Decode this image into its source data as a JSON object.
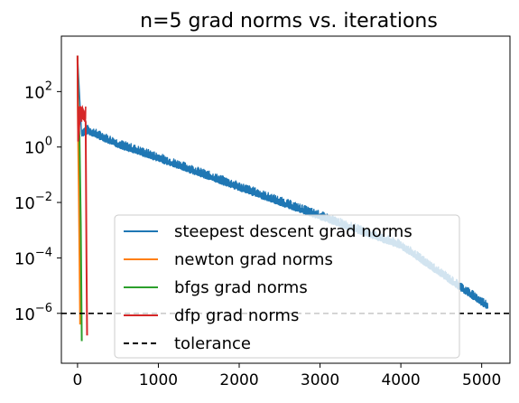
{
  "chart_data": {
    "type": "line",
    "title": "n=5 grad norms vs. iterations",
    "xlabel": "",
    "ylabel": "",
    "xlim": [
      -200,
      5350
    ],
    "ylim_log10": [
      -7.8,
      4.0
    ],
    "yscale": "log",
    "x_ticks": [
      0,
      1000,
      2000,
      3000,
      4000,
      5000
    ],
    "x_tick_labels": [
      "0",
      "1000",
      "2000",
      "3000",
      "4000",
      "5000"
    ],
    "y_ticks_log10": [
      2,
      0,
      -2,
      -4,
      -6
    ],
    "y_tick_labels": [
      {
        "base": "10",
        "exp": "2"
      },
      {
        "base": "10",
        "exp": "0"
      },
      {
        "base": "10",
        "exp": "−2"
      },
      {
        "base": "10",
        "exp": "−4"
      },
      {
        "base": "10",
        "exp": "−6"
      }
    ],
    "grid": false,
    "legend_position": "lower-center",
    "series": [
      {
        "name": "steepest descent grad norms",
        "color": "#1f77b4",
        "iterations": 5076,
        "points_log10": [
          [
            1,
            3.2
          ],
          [
            50,
            0.45
          ],
          [
            120,
            0.55
          ],
          [
            500,
            0.05
          ],
          [
            1000,
            -0.45
          ],
          [
            2000,
            -1.5
          ],
          [
            3000,
            -2.55
          ],
          [
            4000,
            -3.6
          ],
          [
            5076,
            -5.8
          ]
        ]
      },
      {
        "name": "newton grad norms",
        "color": "#ff7f0e",
        "points_log10": [
          [
            0,
            3.2
          ],
          [
            5,
            0.8
          ],
          [
            15,
            -1.6
          ],
          [
            25,
            -4.0
          ],
          [
            32,
            -6.4
          ]
        ]
      },
      {
        "name": "bfgs grad norms",
        "color": "#2ca02c",
        "points_log10": [
          [
            0,
            3.3
          ],
          [
            10,
            1.4
          ],
          [
            25,
            0.3
          ],
          [
            40,
            -2.8
          ],
          [
            52,
            -7.0
          ]
        ]
      },
      {
        "name": "dfp grad norms",
        "color": "#d62728",
        "points_log10": [
          [
            0,
            3.3
          ],
          [
            8,
            0.2
          ],
          [
            30,
            1.1
          ],
          [
            60,
            1.4
          ],
          [
            100,
            0.9
          ],
          [
            110,
            -4.0
          ],
          [
            118,
            -6.8
          ]
        ]
      },
      {
        "name": "tolerance",
        "color": "#000000",
        "style": "dashed",
        "value": 1e-06
      }
    ]
  }
}
